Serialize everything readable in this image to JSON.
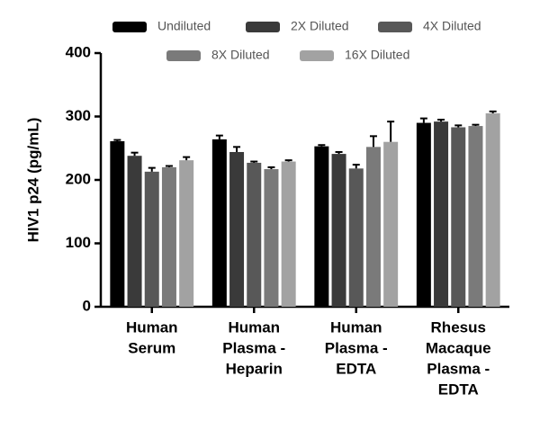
{
  "chart_data": {
    "type": "bar",
    "y_label": "HIV1 p24 (pg/mL)",
    "categories": [
      [
        "Human",
        "Serum"
      ],
      [
        "Human",
        "Plasma -",
        "Heparin"
      ],
      [
        "Human",
        "Plasma -",
        "EDTA"
      ],
      [
        "Rhesus",
        "Macaque",
        "Plasma -",
        "EDTA"
      ]
    ],
    "series": [
      {
        "name": "Undiluted",
        "color": "#000000",
        "values": [
          261,
          264,
          253,
          290
        ],
        "errors": [
          2,
          6,
          2,
          7
        ]
      },
      {
        "name": "2X Diluted",
        "color": "#3a3a3a",
        "values": [
          238,
          244,
          241,
          292
        ],
        "errors": [
          5,
          8,
          3,
          3
        ]
      },
      {
        "name": "4X Diluted",
        "color": "#585858",
        "values": [
          213,
          227,
          218,
          283
        ],
        "errors": [
          6,
          2,
          6,
          3
        ]
      },
      {
        "name": "8X Diluted",
        "color": "#7a7a7a",
        "values": [
          220,
          217,
          252,
          285
        ],
        "errors": [
          2,
          3,
          17,
          2
        ]
      },
      {
        "name": "16X Diluted",
        "color": "#a2a2a2",
        "values": [
          231,
          229,
          260,
          305
        ],
        "errors": [
          5,
          2,
          32,
          3
        ]
      }
    ],
    "ylim": [
      0,
      400
    ],
    "yticks": [
      0,
      100,
      200,
      300,
      400
    ]
  }
}
